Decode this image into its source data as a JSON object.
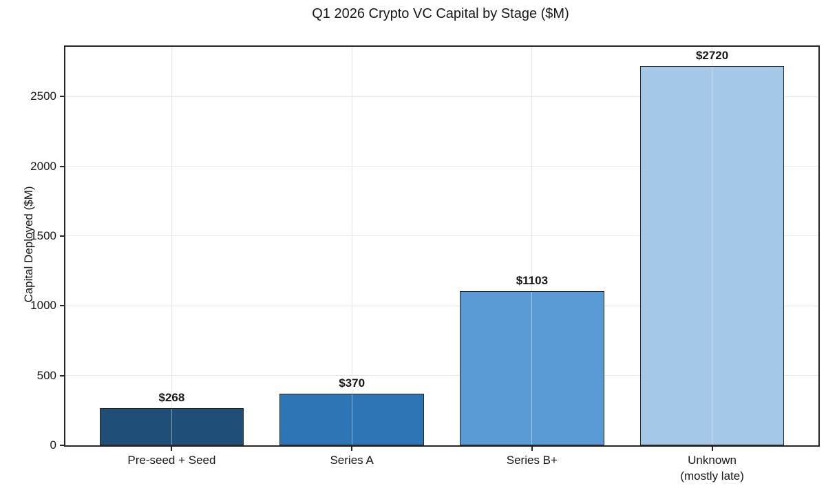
{
  "title": "Q1 2026 Crypto VC Capital by Stage ($M)",
  "chart_data": {
    "type": "bar",
    "title": "Q1 2026 Crypto VC Capital by Stage ($M)",
    "xlabel": "",
    "ylabel": "Capital Deployed ($M)",
    "categories": [
      "Pre-seed + Seed",
      "Series A",
      "Series B+",
      "Unknown\n(mostly late)"
    ],
    "values": [
      268,
      370,
      1103,
      2720
    ],
    "value_labels": [
      "$268",
      "$370",
      "$1103",
      "$2720"
    ],
    "bar_colors": [
      "#1f4e79",
      "#2e75b6",
      "#5b9bd5",
      "#a5c8e9"
    ],
    "bar_edge_color": "#262626",
    "ylim": [
      0,
      2856
    ],
    "yticks": [
      0,
      500,
      1000,
      1500,
      2000,
      2500
    ],
    "grid": true,
    "grid_color": "#e8e8e8",
    "legend": "none",
    "plot_frame": "full-box"
  }
}
